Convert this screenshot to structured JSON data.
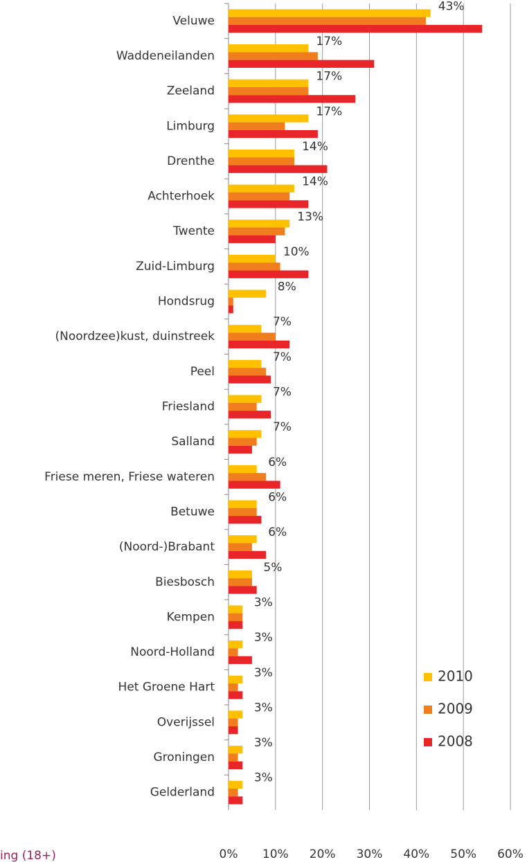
{
  "chart_data": {
    "type": "bar",
    "orientation": "horizontal",
    "note": "ing (18+)",
    "categories": [
      "Veluwe",
      "Waddeneilanden",
      "Zeeland",
      "Limburg",
      "Drenthe",
      "Achterhoek",
      "Twente",
      "Zuid-Limburg",
      "Hondsrug",
      "(Noordzee)kust, duinstreek",
      "Peel",
      "Friesland",
      "Salland",
      "Friese meren, Friese wateren",
      "Betuwe",
      "(Noord-)Brabant",
      "Biesbosch",
      "Kempen",
      "Noord-Holland",
      "Het Groene Hart",
      "Overijssel",
      "Groningen",
      "Gelderland"
    ],
    "series": [
      {
        "name": "2010",
        "color": "#ffc000",
        "values": [
          43,
          17,
          17,
          17,
          14,
          14,
          13,
          10,
          8,
          7,
          7,
          7,
          7,
          6,
          6,
          6,
          5,
          3,
          3,
          3,
          3,
          3,
          3
        ],
        "value_labels": [
          "43%",
          "17%",
          "17%",
          "17%",
          "14%",
          "14%",
          "13%",
          "10%",
          "8%",
          "7%",
          "7%",
          "7%",
          "7%",
          "6%",
          "6%",
          "6%",
          "5%",
          "3%",
          "3%",
          "3%",
          "3%",
          "3%",
          "3%"
        ]
      },
      {
        "name": "2009",
        "color": "#f07d1e",
        "values": [
          42,
          19,
          17,
          12,
          14,
          13,
          12,
          11,
          1,
          10,
          8,
          6,
          6,
          8,
          6,
          5,
          5,
          3,
          2,
          2,
          2,
          2,
          2
        ]
      },
      {
        "name": "2008",
        "color": "#e8262a",
        "values": [
          54,
          31,
          27,
          19,
          21,
          17,
          10,
          17,
          1,
          13,
          9,
          9,
          5,
          11,
          7,
          8,
          6,
          3,
          5,
          3,
          2,
          3,
          3
        ]
      }
    ],
    "xlim": [
      0,
      60
    ],
    "xticks": [
      {
        "value": 0,
        "label": "0%"
      },
      {
        "value": 10,
        "label": "10%"
      },
      {
        "value": 20,
        "label": "20%"
      },
      {
        "value": 30,
        "label": "30%"
      },
      {
        "value": 40,
        "label": "40%"
      },
      {
        "value": 50,
        "label": "50%"
      },
      {
        "value": 60,
        "label": "60%"
      }
    ],
    "grid": true,
    "legend": "lower right"
  }
}
